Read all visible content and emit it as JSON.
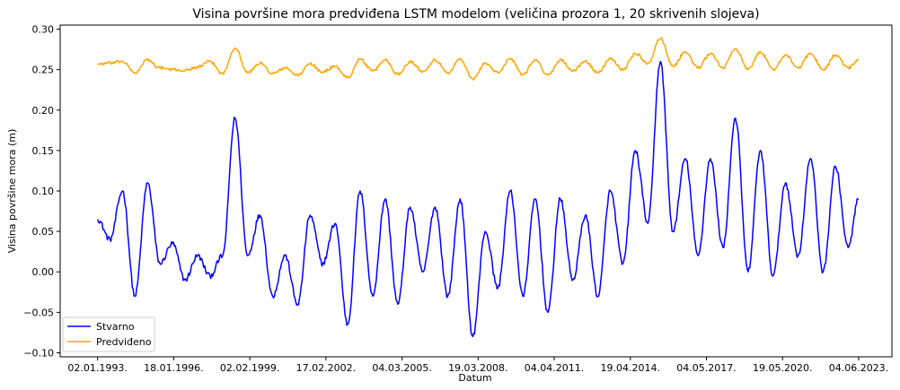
{
  "chart_data": {
    "type": "line",
    "title": "Visina površine mora predviđena LSTM modelom (veličina prozora 1, 20 skrivenih slojeva)",
    "xlabel": "Datum",
    "ylabel": "Visina površine mora (m)",
    "x_tick_labels": [
      "02.01.1993.",
      "18.01.1996.",
      "02.02.1999.",
      "17.02.2002.",
      "04.03.2005.",
      "19.03.2008.",
      "04.04.2011.",
      "19.04.2014.",
      "04.05.2017.",
      "19.05.2020.",
      "04.06.2023."
    ],
    "y_tick_labels": [
      "−0.10",
      "−0.05",
      "0.00",
      "0.05",
      "0.10",
      "0.15",
      "0.20",
      "0.25",
      "0.30"
    ],
    "y_ticks": [
      -0.1,
      -0.05,
      0.0,
      0.05,
      0.1,
      0.15,
      0.2,
      0.25,
      0.3
    ],
    "ylim": [
      -0.105,
      0.305
    ],
    "grid": false,
    "legend_position": "bottom-left",
    "x_dates": [
      "1993-01-02",
      "1993-07-01",
      "1994-01-01",
      "1994-07-01",
      "1995-01-01",
      "1995-07-01",
      "1996-01-01",
      "1996-07-01",
      "1997-01-01",
      "1997-07-01",
      "1998-01-01",
      "1998-07-01",
      "1999-01-01",
      "1999-07-01",
      "2000-01-01",
      "2000-07-01",
      "2001-01-01",
      "2001-07-01",
      "2002-01-01",
      "2002-07-01",
      "2003-01-01",
      "2003-07-01",
      "2004-01-01",
      "2004-07-01",
      "2005-01-01",
      "2005-07-01",
      "2006-01-01",
      "2006-07-01",
      "2007-01-01",
      "2007-07-01",
      "2008-01-01",
      "2008-07-01",
      "2009-01-01",
      "2009-07-01",
      "2010-01-01",
      "2010-07-01",
      "2011-01-01",
      "2011-07-01",
      "2012-01-01",
      "2012-07-01",
      "2013-01-01",
      "2013-07-01",
      "2014-01-01",
      "2014-07-01",
      "2015-01-01",
      "2015-07-01",
      "2016-01-01",
      "2016-07-01",
      "2017-01-01",
      "2017-07-01",
      "2018-01-01",
      "2018-07-01",
      "2019-01-01",
      "2019-07-01",
      "2020-01-01",
      "2020-07-01",
      "2021-01-01",
      "2021-07-01",
      "2022-01-01",
      "2022-07-01",
      "2023-01-01",
      "2023-06-04"
    ],
    "series": [
      {
        "name": "Stvarno",
        "color": "#0000ff",
        "values": [
          0.065,
          0.04,
          0.1,
          -0.03,
          0.11,
          0.01,
          0.035,
          -0.01,
          0.02,
          -0.005,
          0.02,
          0.19,
          0.02,
          0.07,
          -0.03,
          0.02,
          -0.04,
          0.07,
          0.01,
          0.06,
          -0.065,
          0.1,
          -0.03,
          0.09,
          -0.04,
          0.08,
          0.0,
          0.08,
          -0.03,
          0.09,
          -0.08,
          0.05,
          -0.02,
          0.1,
          -0.03,
          0.09,
          -0.05,
          0.09,
          -0.01,
          0.07,
          -0.03,
          0.1,
          0.01,
          0.15,
          0.06,
          0.26,
          0.05,
          0.14,
          0.02,
          0.14,
          0.03,
          0.19,
          0.0,
          0.15,
          -0.005,
          0.11,
          0.02,
          0.14,
          0.0,
          0.13,
          0.03,
          0.09
        ]
      },
      {
        "name": "Predviđeno",
        "color": "#ffa500",
        "values": [
          0.257,
          0.258,
          0.26,
          0.246,
          0.262,
          0.252,
          0.25,
          0.249,
          0.253,
          0.26,
          0.245,
          0.277,
          0.246,
          0.258,
          0.245,
          0.252,
          0.243,
          0.257,
          0.247,
          0.254,
          0.24,
          0.263,
          0.248,
          0.262,
          0.244,
          0.26,
          0.248,
          0.262,
          0.246,
          0.263,
          0.238,
          0.258,
          0.246,
          0.264,
          0.244,
          0.262,
          0.243,
          0.262,
          0.248,
          0.26,
          0.246,
          0.264,
          0.25,
          0.27,
          0.258,
          0.289,
          0.254,
          0.272,
          0.252,
          0.27,
          0.252,
          0.276,
          0.25,
          0.272,
          0.25,
          0.268,
          0.252,
          0.27,
          0.25,
          0.268,
          0.252,
          0.262
        ]
      }
    ]
  }
}
